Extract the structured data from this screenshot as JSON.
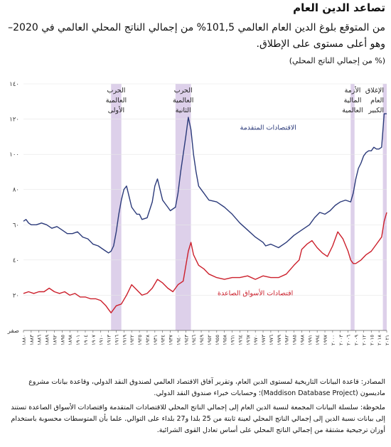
{
  "header": {
    "title": "تصاعد الدين العام",
    "subtitle": "من المتوقع بلوغ الدين العام العالمي 101,5% من إجمالي الناتج المحلي العالمي في 2020– وهو أعلى مستوى على الإطلاق.",
    "unit": "(% من إجمالي الناتج المحلي)"
  },
  "footer": {
    "source": "المصادر: قاعدة البيانات التاريخية لمستوى الدين العام، وتقرير آفاق الاقتصاد العالمي لصندوق النقد الدولي، وقاعدة بيانات مشروع ماديسون (Maddison Database Project)؛ وحسابات خبراء صندوق النقد الدولي.",
    "note": "ملحوظة: سلسلة البيانات المجمعة لنسبة الدين العام إلى إجمالي الناتج المحلي للاقتصادات المتقدمة واقتصادات الأسواق الصاعدة تستند إلى بيانات نسبة الدين إلى إجمالي الناتج المحلي لعينة ثابتة من 25 بلدا و27 بلداء على التوالي. علما بأن المتوسطات محسوبة باستخدام أوزان ترجيحية مشتقة من إجمالي الناتج المحلي على أساس تعادل القوى الشرائية."
  },
  "colors": {
    "advanced": "#2b3a7a",
    "emerging": "#cc1f2b",
    "band": "#ddd0ea",
    "axis": "#555555"
  },
  "chart_data": {
    "type": "line",
    "title": "",
    "xlabel": "",
    "ylabel": "",
    "xlim": [
      1880,
      2021
    ],
    "ylim": [
      0,
      140
    ],
    "ytick_values": [
      0,
      20,
      40,
      60,
      80,
      100,
      120,
      140
    ],
    "ytick_labels": [
      "صفر",
      "٢٠",
      "٤٠",
      "٦٠",
      "٨٠",
      "١٠٠",
      "١٢٠",
      "١٤٠"
    ],
    "x_tick_years": [
      1880,
      1883,
      1886,
      1889,
      1892,
      1895,
      1898,
      1901,
      1904,
      1907,
      1910,
      1913,
      1916,
      1919,
      1922,
      1925,
      1928,
      1931,
      1934,
      1937,
      1940,
      1943,
      1946,
      1949,
      1952,
      1955,
      1958,
      1961,
      1964,
      1967,
      1970,
      1973,
      1976,
      1979,
      1982,
      1985,
      1988,
      1991,
      1994,
      1997,
      2000,
      2003,
      2006,
      2009,
      2012,
      2015,
      2018,
      2021
    ],
    "x_tick_labels": [
      "١٨٨٠",
      "١٨٨٣",
      "١٨٨٦",
      "١٨٨٩",
      "١٨٩٢",
      "١٨٩٥",
      "١٨٩٨",
      "١٩٠١",
      "١٩٠٤",
      "١٩٠٧",
      "١٩١٠",
      "١٩١٣",
      "١٩١٦",
      "١٩١٩",
      "١٩٢٢",
      "١٩٢٥",
      "١٩٢٨",
      "١٩٣١",
      "١٩٣٤",
      "١٩٣٧",
      "١٩٤٠",
      "١٩٤٣",
      "١٩٤٦",
      "١٩٤٩",
      "١٩٥٢",
      "١٩٥٥",
      "١٩٥٨",
      "١٩٦١",
      "١٩٦٤",
      "١٩٦٧",
      "١٩٧٠",
      "١٩٧٣",
      "١٩٧٦",
      "١٩٧٩",
      "١٩٨٢",
      "١٩٨٥",
      "١٩٨٨",
      "١٩٩١",
      "١٩٩٤",
      "١٩٩٧",
      "٢٠٠٠",
      "٢٠٠٣",
      "٢٠٠٦",
      "٢٠٠٩",
      "٢٠١٢",
      "٢٠١٥",
      "٢٠١٨",
      "٢٠٢١"
    ],
    "shaded_periods": [
      {
        "start": 1914,
        "end": 1918,
        "label_lines": [
          "الحرب",
          "العالمية",
          "الأولى"
        ]
      },
      {
        "start": 1939,
        "end": 1945,
        "label_lines": [
          "الحرب",
          "العالمية",
          "الثانية"
        ]
      },
      {
        "start": 2007,
        "end": 2008.5,
        "label_lines": [
          "الأزمة",
          "المالية",
          "العالمية"
        ]
      },
      {
        "start": 2019.5,
        "end": 2021,
        "label_lines": [
          "الإغلاق",
          "العام",
          "الكبير"
        ]
      }
    ],
    "series": [
      {
        "name": "الاقتصادات المتقدمة",
        "color": "#2b3a7a",
        "x": [
          1880,
          1881,
          1882,
          1883,
          1885,
          1887,
          1889,
          1891,
          1893,
          1895,
          1897,
          1899,
          1901,
          1903,
          1905,
          1907,
          1909,
          1911,
          1912,
          1913,
          1914,
          1915,
          1916,
          1917,
          1918,
          1919,
          1920,
          1921,
          1922,
          1923,
          1924,
          1925,
          1926,
          1928,
          1930,
          1931,
          1932,
          1933,
          1934,
          1935,
          1936,
          1937,
          1938,
          1939,
          1940,
          1941,
          1942,
          1943,
          1944,
          1945,
          1946,
          1947,
          1948,
          1950,
          1952,
          1955,
          1958,
          1961,
          1964,
          1967,
          1970,
          1973,
          1974,
          1976,
          1979,
          1982,
          1985,
          1988,
          1991,
          1993,
          1995,
          1997,
          1999,
          2001,
          2003,
          2005,
          2007,
          2008,
          2009,
          2010,
          2011,
          2012,
          2013,
          2014,
          2015,
          2016,
          2017,
          2018,
          2019,
          2020,
          2021
        ],
        "y": [
          62,
          63,
          61,
          60,
          60,
          61,
          60,
          58,
          59,
          57,
          55,
          55,
          56,
          53,
          52,
          49,
          48,
          46,
          45,
          44,
          45,
          48,
          56,
          66,
          74,
          80,
          82,
          76,
          70,
          68,
          66,
          66,
          63,
          64,
          73,
          82,
          86,
          80,
          74,
          72,
          70,
          68,
          69,
          70,
          78,
          90,
          100,
          110,
          121,
          114,
          100,
          90,
          82,
          78,
          74,
          73,
          70,
          66,
          61,
          57,
          53,
          50,
          48,
          49,
          47,
          50,
          54,
          57,
          60,
          64,
          67,
          66,
          68,
          71,
          73,
          74,
          73,
          78,
          86,
          92,
          95,
          99,
          101,
          102,
          102,
          104,
          103,
          103,
          104,
          123,
          123
        ]
      },
      {
        "name": "اقتصادات الأسواق الصاعدة",
        "color": "#cc1f2b",
        "x": [
          1880,
          1882,
          1884,
          1886,
          1888,
          1890,
          1892,
          1894,
          1896,
          1898,
          1900,
          1902,
          1904,
          1906,
          1908,
          1910,
          1912,
          1913,
          1914,
          1915,
          1916,
          1918,
          1920,
          1922,
          1924,
          1926,
          1928,
          1930,
          1932,
          1934,
          1936,
          1938,
          1940,
          1942,
          1944,
          1945,
          1946,
          1948,
          1950,
          1952,
          1955,
          1958,
          1961,
          1964,
          1967,
          1970,
          1973,
          1976,
          1979,
          1982,
          1985,
          1987,
          1988,
          1990,
          1992,
          1994,
          1996,
          1998,
          2000,
          2002,
          2004,
          2006,
          2007,
          2008,
          2009,
          2011,
          2013,
          2015,
          2017,
          2019,
          2020,
          2021
        ],
        "y": [
          21,
          22,
          21,
          22,
          22,
          24,
          22,
          21,
          22,
          20,
          21,
          19,
          19,
          18,
          18,
          17,
          14,
          12,
          10,
          12,
          14,
          15,
          20,
          26,
          23,
          20,
          21,
          24,
          29,
          27,
          24,
          22,
          26,
          28,
          45,
          50,
          43,
          37,
          35,
          32,
          30,
          29,
          30,
          30,
          31,
          29,
          31,
          30,
          30,
          32,
          37,
          40,
          46,
          49,
          51,
          47,
          44,
          42,
          48,
          56,
          52,
          45,
          40,
          38,
          38,
          40,
          43,
          45,
          49,
          53,
          62,
          67
        ]
      }
    ],
    "series_labels": [
      {
        "series": "الاقتصادات المتقدمة",
        "text": "الاقتصادات المتقدمة",
        "x": 1975,
        "y": 114
      },
      {
        "series": "اقتصادات الأسواق الصاعدة",
        "text": "اقتصادات الأسواق الصاعدة",
        "x": 1970,
        "y": 20
      }
    ]
  }
}
